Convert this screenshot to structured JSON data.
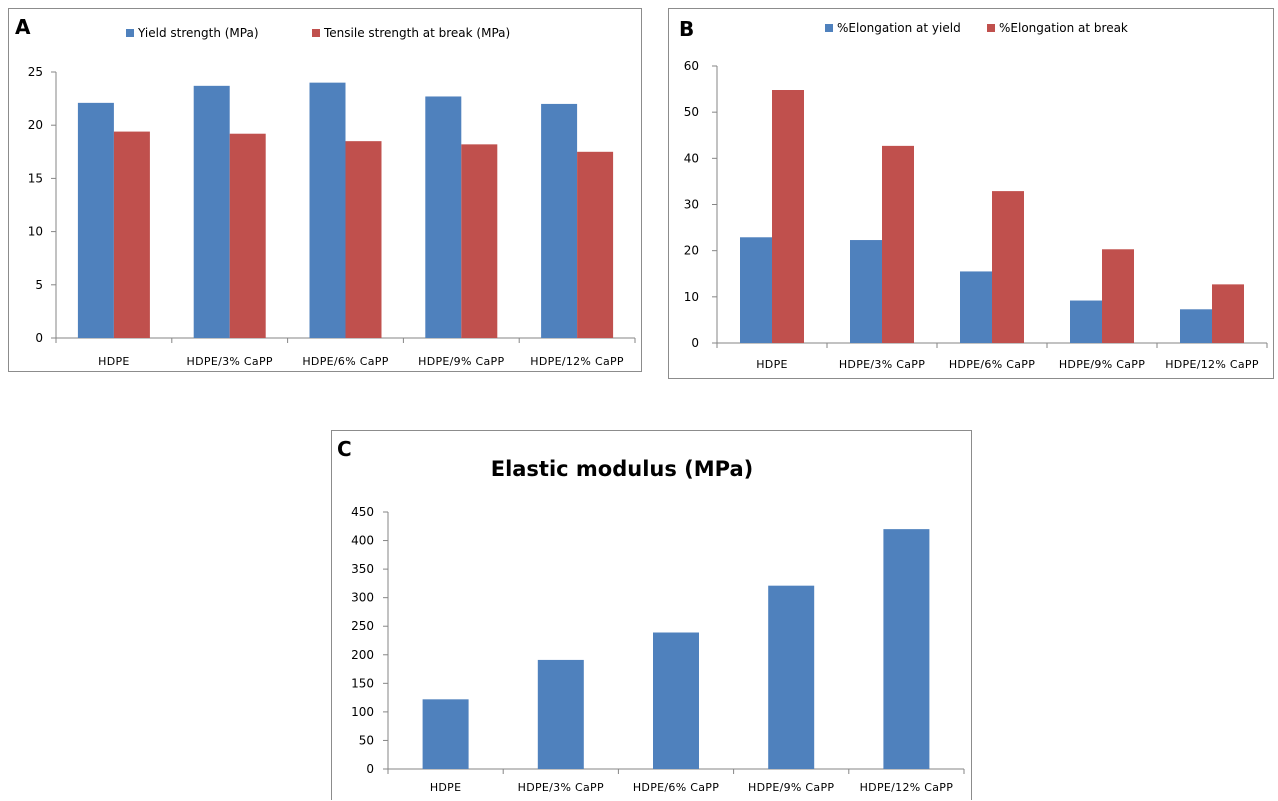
{
  "colors": {
    "blue": "#4f81bd",
    "red": "#c0504d",
    "axis": "#868686",
    "frame": "#8c8c8c"
  },
  "chart_data": [
    {
      "panel": "A",
      "type": "bar",
      "categories": [
        "HDPE",
        "HDPE/3% CaPP",
        "HDPE/6% CaPP",
        "HDPE/9% CaPP",
        "HDPE/12% CaPP"
      ],
      "series": [
        {
          "name": "Yield strength (MPa)",
          "color": "#4f81bd",
          "values": [
            22.1,
            23.7,
            24.0,
            22.7,
            22.0
          ]
        },
        {
          "name": "Tensile strength at break (MPa)",
          "color": "#c0504d",
          "values": [
            19.4,
            19.2,
            18.5,
            18.2,
            17.5
          ]
        }
      ],
      "ylim": [
        0,
        25
      ],
      "yticks": [
        0,
        5,
        10,
        15,
        20,
        25
      ],
      "legend": "top"
    },
    {
      "panel": "B",
      "type": "bar",
      "categories": [
        "HDPE",
        "HDPE/3% CaPP",
        "HDPE/6% CaPP",
        "HDPE/9% CaPP",
        "HDPE/12% CaPP"
      ],
      "series": [
        {
          "name": "%Elongation at yield",
          "color": "#4f81bd",
          "values": [
            22.9,
            22.3,
            15.5,
            9.2,
            7.3
          ]
        },
        {
          "name": "%Elongation at break",
          "color": "#c0504d",
          "values": [
            54.8,
            42.7,
            32.9,
            20.3,
            12.7
          ]
        }
      ],
      "ylim": [
        0,
        60
      ],
      "yticks": [
        0,
        10,
        20,
        30,
        40,
        50,
        60
      ],
      "legend": "top"
    },
    {
      "panel": "C",
      "type": "bar",
      "title": "Elastic modulus (MPa)",
      "categories": [
        "HDPE",
        "HDPE/3% CaPP",
        "HDPE/6% CaPP",
        "HDPE/9% CaPP",
        "HDPE/12% CaPP"
      ],
      "series": [
        {
          "name": "",
          "color": "#4f81bd",
          "values": [
            122,
            191,
            239,
            321,
            420
          ]
        }
      ],
      "ylim": [
        0,
        450
      ],
      "yticks": [
        0,
        50,
        100,
        150,
        200,
        250,
        300,
        350,
        400,
        450
      ],
      "legend": "none"
    }
  ]
}
